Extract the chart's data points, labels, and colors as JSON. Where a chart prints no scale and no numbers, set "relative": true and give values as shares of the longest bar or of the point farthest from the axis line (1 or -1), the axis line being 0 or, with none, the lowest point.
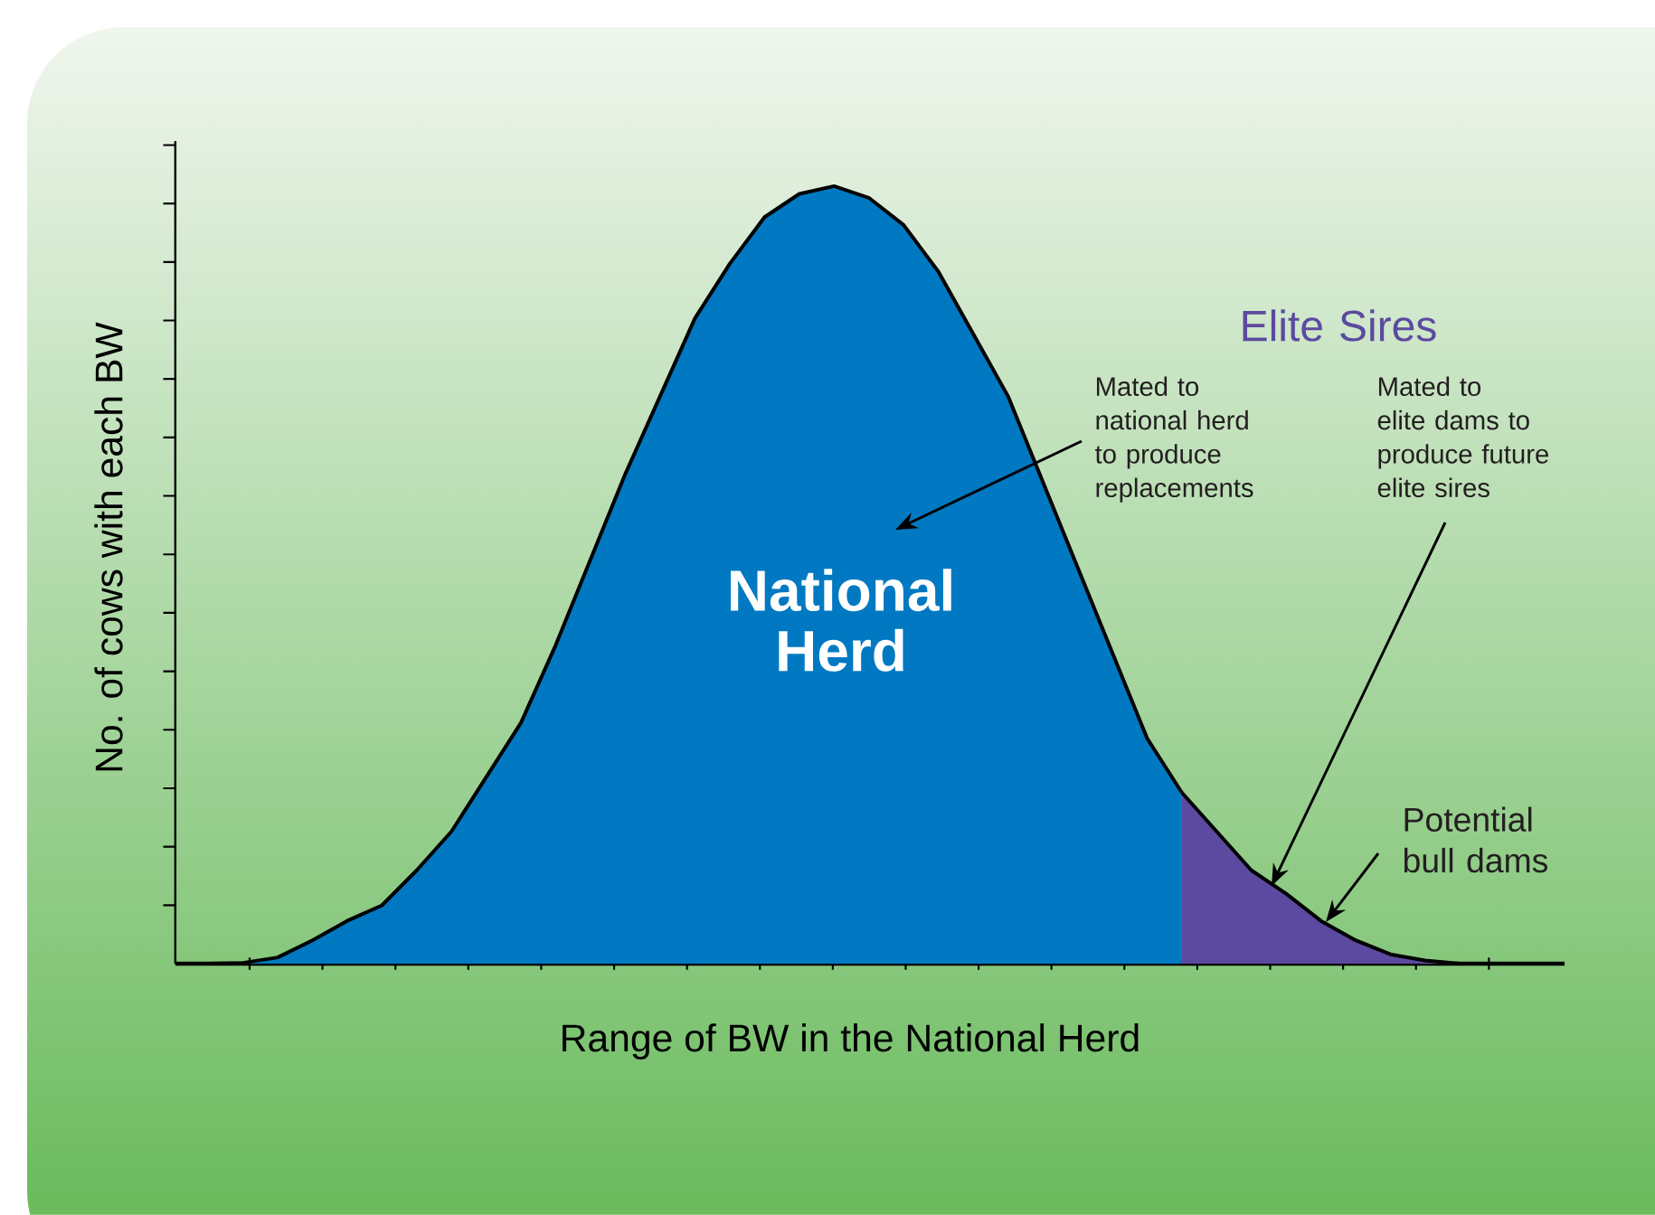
{
  "chart_data": {
    "type": "area",
    "relative": true,
    "xlabel": "Range of BW in the National Herd",
    "ylabel": "No. of cows with each BW",
    "categories": [
      null,
      null,
      null,
      null,
      null,
      null,
      null,
      null,
      null,
      null,
      null,
      null,
      null,
      null,
      null,
      null,
      null,
      null,
      null,
      null,
      null,
      null,
      null,
      null,
      null,
      null,
      null,
      null,
      null,
      null,
      null,
      null,
      null,
      null,
      null,
      null,
      null,
      null,
      null,
      null
    ],
    "series": [
      {
        "name": "National Herd",
        "color": "#0079c2",
        "values": [
          0,
          0.001,
          0.008,
          0.03,
          0.055,
          0.075,
          0.12,
          0.17,
          0.24,
          0.31,
          0.41,
          0.52,
          0.63,
          0.73,
          0.83,
          0.9,
          0.96,
          0.99,
          1,
          0.985,
          0.95,
          0.89,
          0.81,
          0.73,
          0.62,
          0.51,
          0.4,
          0.29,
          0.22,
          null,
          null,
          null,
          null,
          null,
          null,
          null,
          null,
          null,
          null,
          null
        ]
      },
      {
        "name": "Elite Sires",
        "color": "#5b4a9f",
        "values": [
          null,
          null,
          null,
          null,
          null,
          null,
          null,
          null,
          null,
          null,
          null,
          null,
          null,
          null,
          null,
          null,
          null,
          null,
          null,
          null,
          null,
          null,
          null,
          null,
          null,
          null,
          null,
          null,
          0.22,
          0.17,
          0.12,
          0.09,
          0.055,
          0.03,
          0.012,
          0.004,
          0,
          0,
          0,
          0
        ]
      }
    ],
    "annotations": [
      "Mated to\nnational herd\nto produce\nreplacements",
      "Mated to\nelite dams to\nproduce future\nelite sires",
      "Potential\nbull dams"
    ]
  }
}
